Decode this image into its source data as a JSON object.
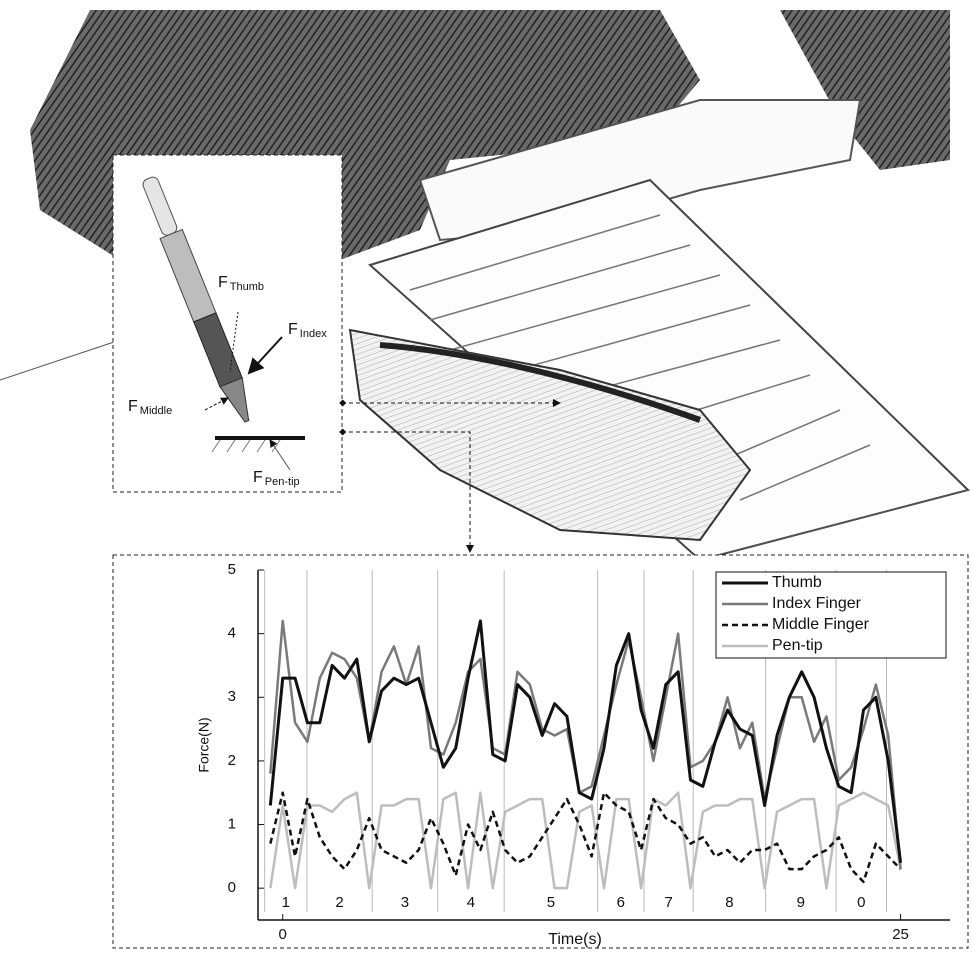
{
  "chart_data": {
    "type": "line",
    "x_label": "Time(s)",
    "y_label": "Force(N)",
    "x": [
      -0.5,
      0,
      0.5,
      1,
      1.5,
      2,
      2.5,
      3,
      3.5,
      4,
      4.5,
      5,
      5.5,
      6,
      6.5,
      7,
      7.5,
      8,
      8.5,
      9,
      9.5,
      10,
      10.5,
      11,
      11.5,
      12,
      12.5,
      13,
      13.5,
      14,
      14.5,
      15,
      15.5,
      16,
      16.5,
      17,
      17.5,
      18,
      18.5,
      19,
      19.5,
      20,
      20.5,
      21,
      21.5,
      22,
      22.5,
      23,
      23.5,
      24,
      24.5,
      25
    ],
    "series": [
      {
        "name": "Thumb",
        "color": "#111111",
        "style": "solid",
        "width": 3,
        "values": [
          1.3,
          3.3,
          3.3,
          2.6,
          2.6,
          3.5,
          3.3,
          3.6,
          2.3,
          3.1,
          3.3,
          3.2,
          3.3,
          2.6,
          1.9,
          2.2,
          3.3,
          4.2,
          2.1,
          2.0,
          3.2,
          3.0,
          2.4,
          2.9,
          2.7,
          1.5,
          1.4,
          2.2,
          3.5,
          4.0,
          2.8,
          2.2,
          3.2,
          3.4,
          1.7,
          1.6,
          2.3,
          2.8,
          2.5,
          2.4,
          1.3,
          2.4,
          3.0,
          3.4,
          3.0,
          2.2,
          1.6,
          1.5,
          2.8,
          3.0,
          2.0,
          0.4
        ]
      },
      {
        "name": "Index Finger",
        "color": "#7a7a7a",
        "style": "solid",
        "width": 2.5,
        "values": [
          1.8,
          4.2,
          2.6,
          2.3,
          3.3,
          3.7,
          3.6,
          3.3,
          2.3,
          3.4,
          3.8,
          3.2,
          3.8,
          2.2,
          2.1,
          2.6,
          3.4,
          3.6,
          2.2,
          2.1,
          3.4,
          3.2,
          2.5,
          2.4,
          2.5,
          1.5,
          1.6,
          2.4,
          3.2,
          3.9,
          3.0,
          2.0,
          3.0,
          4.0,
          1.9,
          2.0,
          2.3,
          3.0,
          2.2,
          2.6,
          1.4,
          2.2,
          3.0,
          3.0,
          2.3,
          2.7,
          1.7,
          1.9,
          2.5,
          3.2,
          2.4,
          0.3
        ]
      },
      {
        "name": "Middle Finger",
        "color": "#111111",
        "style": "dashed",
        "width": 2.5,
        "values": [
          0.7,
          1.5,
          0.5,
          1.4,
          0.8,
          0.5,
          0.3,
          0.6,
          1.1,
          0.6,
          0.5,
          0.4,
          0.6,
          1.1,
          0.7,
          0.2,
          1.0,
          0.6,
          1.2,
          0.6,
          0.4,
          0.5,
          0.8,
          1.1,
          1.4,
          1.0,
          0.5,
          1.5,
          1.3,
          1.2,
          0.6,
          1.4,
          1.1,
          1.0,
          0.7,
          0.8,
          0.5,
          0.6,
          0.4,
          0.6,
          0.6,
          0.7,
          0.3,
          0.3,
          0.5,
          0.6,
          0.8,
          0.3,
          0.1,
          0.7,
          0.5,
          0.3
        ]
      },
      {
        "name": "Pen-tip",
        "color": "#bdbdbd",
        "style": "solid",
        "width": 2.5,
        "values": [
          0,
          1.3,
          0,
          1.3,
          1.3,
          1.2,
          1.4,
          1.5,
          0,
          1.3,
          1.3,
          1.4,
          1.4,
          0,
          1.4,
          1.5,
          0,
          1.5,
          0,
          1.2,
          1.3,
          1.4,
          1.4,
          0,
          0,
          1.2,
          1.3,
          0,
          1.4,
          1.4,
          0,
          1.4,
          1.3,
          1.5,
          0,
          1.2,
          1.3,
          1.3,
          1.4,
          1.4,
          0,
          1.2,
          1.3,
          1.4,
          1.4,
          0,
          1.3,
          1.4,
          1.5,
          1.4,
          1.3,
          0.3
        ]
      }
    ],
    "xlim": [
      -1,
      27
    ],
    "xticks": [
      0,
      25
    ],
    "ylim": [
      -0.5,
      5
    ],
    "yticks": [
      0,
      1,
      2,
      3,
      4,
      5
    ],
    "segment_boundaries": [
      -0.73,
      0.98,
      3.62,
      6.27,
      8.96,
      12.74,
      14.62,
      16.61,
      19.54,
      22.39,
      24.43
    ],
    "segment_labels": [
      "1",
      "2",
      "3",
      "4",
      "5",
      "6",
      "7",
      "8",
      "9",
      "0"
    ],
    "legend": "top-right"
  },
  "inset": {
    "force_labels": [
      {
        "main": "F",
        "sub": "Thumb"
      },
      {
        "main": "F",
        "sub": "Index"
      },
      {
        "main": "F",
        "sub": "Middle"
      },
      {
        "main": "F",
        "sub": "Pen-tip"
      }
    ]
  }
}
